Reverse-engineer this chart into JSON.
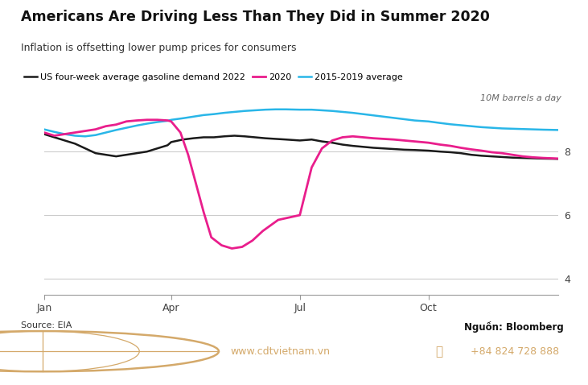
{
  "title": "Americans Are Driving Less Than They Did in Summer 2020",
  "subtitle": "Inflation is offsetting lower pump prices for consumers",
  "legend_labels": [
    "US four-week average gasoline demand 2022",
    "2020",
    "2015-2019 average"
  ],
  "legend_colors": [
    "#1a1a1a",
    "#e91e8c",
    "#29b6e8"
  ],
  "ylabel_unit": "10M barrels a day",
  "xtick_labels": [
    "Jan",
    "Apr",
    "Jul",
    "Oct"
  ],
  "xtick_positions": [
    0,
    0.247,
    0.497,
    0.747
  ],
  "ylim": [
    3.5,
    9.5
  ],
  "yticks": [
    4,
    6,
    8
  ],
  "source_left": "Source: EIA",
  "source_right": "Nguồn: Bloomberg",
  "footer_bg": "#1b3d6b",
  "footer_red_line": "#c0392b",
  "footer_website": "www.cdtvietnam.vn",
  "footer_phone": "+84 824 728 888",
  "footer_text_color": "#d4a96a",
  "bg_color": "#ffffff",
  "grid_color": "#cccccc",
  "x_2022": [
    0,
    0.02,
    0.04,
    0.06,
    0.08,
    0.1,
    0.12,
    0.14,
    0.16,
    0.18,
    0.2,
    0.22,
    0.24,
    0.247,
    0.27,
    0.29,
    0.31,
    0.33,
    0.35,
    0.37,
    0.39,
    0.41,
    0.43,
    0.45,
    0.47,
    0.497,
    0.52,
    0.54,
    0.56,
    0.58,
    0.6,
    0.62,
    0.64,
    0.66,
    0.68,
    0.7,
    0.72,
    0.747,
    0.77,
    0.79,
    0.81,
    0.83,
    0.85,
    0.87,
    0.89,
    0.91,
    0.93,
    0.95,
    0.97,
    1.0
  ],
  "y_2022": [
    8.55,
    8.45,
    8.35,
    8.25,
    8.1,
    7.95,
    7.9,
    7.85,
    7.9,
    7.95,
    8.0,
    8.1,
    8.2,
    8.3,
    8.38,
    8.42,
    8.45,
    8.45,
    8.48,
    8.5,
    8.48,
    8.45,
    8.42,
    8.4,
    8.38,
    8.35,
    8.38,
    8.32,
    8.28,
    8.22,
    8.18,
    8.15,
    8.12,
    8.1,
    8.08,
    8.06,
    8.05,
    8.03,
    8.0,
    7.98,
    7.95,
    7.9,
    7.87,
    7.85,
    7.83,
    7.81,
    7.8,
    7.79,
    7.78,
    7.77
  ],
  "x_2020": [
    0,
    0.02,
    0.04,
    0.06,
    0.08,
    0.1,
    0.12,
    0.14,
    0.16,
    0.18,
    0.2,
    0.22,
    0.24,
    0.247,
    0.265,
    0.28,
    0.295,
    0.31,
    0.325,
    0.345,
    0.365,
    0.385,
    0.405,
    0.425,
    0.455,
    0.497,
    0.52,
    0.54,
    0.56,
    0.58,
    0.6,
    0.62,
    0.64,
    0.66,
    0.68,
    0.7,
    0.72,
    0.747,
    0.77,
    0.79,
    0.81,
    0.83,
    0.85,
    0.87,
    0.89,
    0.91,
    0.93,
    0.95,
    0.97,
    1.0
  ],
  "y_2020": [
    8.6,
    8.5,
    8.55,
    8.6,
    8.65,
    8.7,
    8.8,
    8.85,
    8.95,
    8.98,
    9.0,
    9.0,
    8.98,
    8.95,
    8.6,
    7.9,
    7.0,
    6.1,
    5.3,
    5.05,
    4.95,
    5.0,
    5.2,
    5.5,
    5.85,
    6.0,
    7.5,
    8.1,
    8.35,
    8.45,
    8.48,
    8.45,
    8.42,
    8.4,
    8.38,
    8.35,
    8.32,
    8.28,
    8.22,
    8.18,
    8.12,
    8.07,
    8.03,
    7.98,
    7.95,
    7.9,
    7.85,
    7.82,
    7.8,
    7.78
  ],
  "x_avg": [
    0,
    0.02,
    0.04,
    0.06,
    0.08,
    0.1,
    0.12,
    0.14,
    0.16,
    0.18,
    0.2,
    0.22,
    0.24,
    0.247,
    0.27,
    0.29,
    0.31,
    0.33,
    0.35,
    0.37,
    0.39,
    0.41,
    0.43,
    0.45,
    0.47,
    0.497,
    0.52,
    0.54,
    0.56,
    0.58,
    0.6,
    0.62,
    0.64,
    0.66,
    0.68,
    0.7,
    0.72,
    0.747,
    0.77,
    0.79,
    0.81,
    0.83,
    0.85,
    0.87,
    0.89,
    0.91,
    0.93,
    0.95,
    0.97,
    1.0
  ],
  "y_avg": [
    8.7,
    8.62,
    8.55,
    8.5,
    8.48,
    8.52,
    8.6,
    8.68,
    8.75,
    8.82,
    8.88,
    8.93,
    8.97,
    9.0,
    9.05,
    9.1,
    9.15,
    9.18,
    9.22,
    9.25,
    9.28,
    9.3,
    9.32,
    9.33,
    9.33,
    9.32,
    9.32,
    9.3,
    9.28,
    9.25,
    9.22,
    9.18,
    9.14,
    9.1,
    9.06,
    9.02,
    8.98,
    8.95,
    8.9,
    8.86,
    8.83,
    8.8,
    8.77,
    8.75,
    8.73,
    8.72,
    8.71,
    8.7,
    8.69,
    8.68
  ]
}
